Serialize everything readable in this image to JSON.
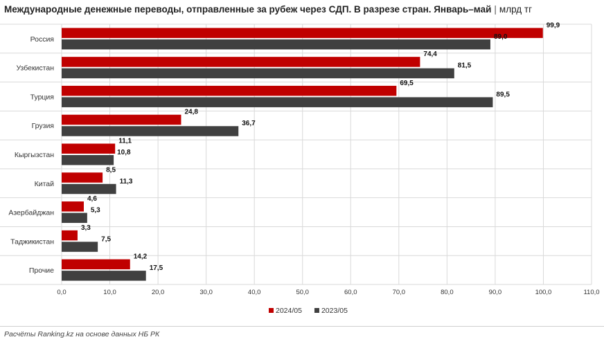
{
  "title": {
    "main": "Международные денежные переводы, отправленные за рубеж через СДП. В разрезе стран. Январь–май",
    "separator": "|",
    "unit": "млрд тг"
  },
  "footer": "Расчёты Ranking.kz на основе данных НБ РК",
  "colors": {
    "series1": "#c00000",
    "series2": "#404040",
    "grid": "#d9d9d9"
  },
  "chart_data": {
    "type": "bar",
    "orientation": "horizontal",
    "categories": [
      "Россия",
      "Узбекистан",
      "Турция",
      "Грузия",
      "Кыргызстан",
      "Китай",
      "Азербайджан",
      "Таджикистан",
      "Прочие"
    ],
    "series": [
      {
        "name": "2024/05",
        "values": [
          99.9,
          74.4,
          69.5,
          24.8,
          11.1,
          8.5,
          4.6,
          3.3,
          14.2
        ],
        "labels": [
          "99,9",
          "74,4",
          "69,5",
          "24,8",
          "11,1",
          "8,5",
          "4,6",
          "3,3",
          "14,2"
        ]
      },
      {
        "name": "2023/05",
        "values": [
          89.0,
          81.5,
          89.5,
          36.7,
          10.8,
          11.3,
          5.3,
          7.5,
          17.5
        ],
        "labels": [
          "89,0",
          "81,5",
          "89,5",
          "36,7",
          "10,8",
          "11,3",
          "5,3",
          "7,5",
          "17,5"
        ]
      }
    ],
    "xlim": [
      0,
      110
    ],
    "xticks": [
      0,
      10,
      20,
      30,
      40,
      50,
      60,
      70,
      80,
      90,
      100,
      110
    ],
    "xtick_labels": [
      "0,0",
      "10,0",
      "20,0",
      "30,0",
      "40,0",
      "50,0",
      "60,0",
      "70,0",
      "80,0",
      "90,0",
      "100,0",
      "110,0"
    ],
    "grid": true,
    "legend_position": "bottom"
  }
}
